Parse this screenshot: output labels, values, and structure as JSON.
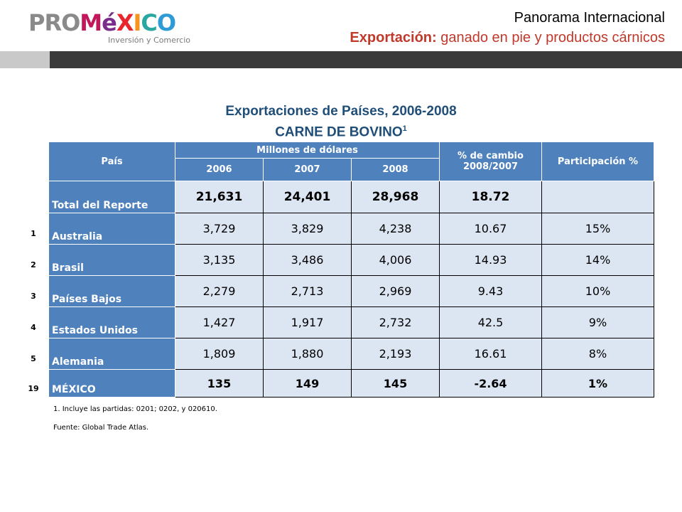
{
  "logo": {
    "brand_pro": "PRO",
    "brand_m": "M",
    "brand_e": "é",
    "brand_x": "X",
    "brand_i": "I",
    "brand_c": "C",
    "brand_o": "O",
    "tagline": "Inversión y Comercio"
  },
  "header": {
    "title": "Panorama Internacional",
    "subtitle_bold": "Exportación:",
    "subtitle_rest": " ganado en pie y productos cárnicos"
  },
  "slide": {
    "title": "Exportaciones de Países, 2006-2008",
    "subtitle": "CARNE DE BOVINO",
    "subtitle_sup": "1"
  },
  "table": {
    "col_country": "País",
    "col_group": "Millones de dólares",
    "col_change": "% de cambio 2008/2007",
    "col_share": "Participación %",
    "years": [
      "2006",
      "2007",
      "2008"
    ],
    "rows": [
      {
        "rank": "",
        "country": "Total del Reporte",
        "v2006": "21,631",
        "v2007": "24,401",
        "v2008": "28,968",
        "change": "18.72",
        "share": ""
      },
      {
        "rank": "1",
        "country": "Australia",
        "v2006": "3,729",
        "v2007": "3,829",
        "v2008": "4,238",
        "change": "10.67",
        "share": "15%"
      },
      {
        "rank": "2",
        "country": "Brasil",
        "v2006": "3,135",
        "v2007": "3,486",
        "v2008": "4,006",
        "change": "14.93",
        "share": "14%"
      },
      {
        "rank": "3",
        "country": "Países Bajos",
        "v2006": "2,279",
        "v2007": "2,713",
        "v2008": "2,969",
        "change": "9.43",
        "share": "10%"
      },
      {
        "rank": "4",
        "country": "Estados Unidos",
        "v2006": "1,427",
        "v2007": "1,917",
        "v2008": "2,732",
        "change": "42.5",
        "share": "9%"
      },
      {
        "rank": "5",
        "country": "Alemania",
        "v2006": "1,809",
        "v2007": "1,880",
        "v2008": "2,193",
        "change": "16.61",
        "share": "8%"
      },
      {
        "rank": "19",
        "country": "MÉXICO",
        "v2006": "135",
        "v2007": "149",
        "v2008": "145",
        "change": "-2.64",
        "share": "1%"
      }
    ]
  },
  "footnotes": {
    "note1": "1. Incluye las partidas: 0201;  0202,  y 020610.",
    "source": "Fuente: Global Trade Atlas."
  }
}
